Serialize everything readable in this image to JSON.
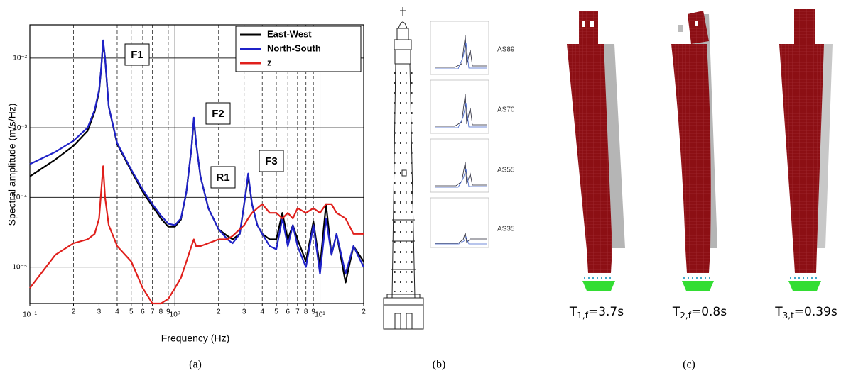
{
  "chart_data": {
    "type": "line",
    "xlabel": "Frequency (Hz)",
    "ylabel": "Spectral amplitude (m/s/Hz)",
    "xscale": "log",
    "yscale": "log",
    "grid": true,
    "legend": "upper right",
    "xlim": [
      0.1,
      20
    ],
    "ylim": [
      3e-06,
      0.03
    ],
    "xticks": [
      {
        "value": 0.1,
        "label": "10⁻¹"
      },
      {
        "value": 0.2,
        "label": "2"
      },
      {
        "value": 0.3,
        "label": "3"
      },
      {
        "value": 0.4,
        "label": "4"
      },
      {
        "value": 0.5,
        "label": "5"
      },
      {
        "value": 0.6,
        "label": "6"
      },
      {
        "value": 0.7,
        "label": "7"
      },
      {
        "value": 0.8,
        "label": "8"
      },
      {
        "value": 0.9,
        "label": "9"
      },
      {
        "value": 1,
        "label": "10⁰"
      },
      2,
      3,
      4,
      5,
      6,
      7,
      8,
      9,
      {
        "value": 10,
        "label": "10¹"
      },
      {
        "value": 20,
        "label": "2"
      }
    ],
    "yticks": [
      {
        "value": 1e-05,
        "label": "10⁻⁵"
      },
      {
        "value": 0.0001,
        "label": "10⁻⁴"
      },
      {
        "value": 0.001,
        "label": "10⁻³"
      },
      {
        "value": 0.01,
        "label": "10⁻²"
      }
    ],
    "x": [
      0.1,
      0.15,
      0.2,
      0.25,
      0.28,
      0.3,
      0.31,
      0.32,
      0.33,
      0.35,
      0.4,
      0.5,
      0.6,
      0.7,
      0.8,
      0.9,
      1.0,
      1.1,
      1.2,
      1.3,
      1.35,
      1.4,
      1.5,
      1.7,
      2.0,
      2.3,
      2.5,
      2.8,
      3.0,
      3.2,
      3.4,
      3.7,
      4.0,
      4.5,
      5.0,
      5.5,
      6.0,
      6.5,
      7,
      8,
      9,
      10,
      11,
      12,
      13,
      15,
      17,
      20
    ],
    "series": [
      {
        "name": "East-West",
        "color": "#000000",
        "values": [
          0.0002,
          0.00035,
          0.00055,
          0.0009,
          0.0017,
          0.0033,
          0.007,
          0.017,
          0.01,
          0.002,
          0.00058,
          0.00024,
          0.00012,
          7.5e-05,
          5e-05,
          3.8e-05,
          3.8e-05,
          4.8e-05,
          0.00012,
          0.0005,
          0.0013,
          0.0006,
          0.0002,
          7e-05,
          3.5e-05,
          2.8e-05,
          2.5e-05,
          3e-05,
          8e-05,
          0.0002,
          8e-05,
          4e-05,
          3e-05,
          2.5e-05,
          2.5e-05,
          6e-05,
          2.5e-05,
          4e-05,
          2.5e-05,
          1.2e-05,
          4.5e-05,
          1e-05,
          8e-05,
          1.5e-05,
          3e-05,
          6e-06,
          2e-05,
          1.2e-05
        ]
      },
      {
        "name": "North-South",
        "color": "#1f22c8",
        "values": [
          0.0003,
          0.00045,
          0.00065,
          0.001,
          0.0018,
          0.0035,
          0.007,
          0.018,
          0.01,
          0.002,
          0.0006,
          0.00025,
          0.00013,
          8e-05,
          5.5e-05,
          4.2e-05,
          4e-05,
          5e-05,
          0.00012,
          0.0005,
          0.0014,
          0.0006,
          0.0002,
          7e-05,
          3.5e-05,
          2.5e-05,
          2.2e-05,
          3e-05,
          8e-05,
          0.00022,
          8e-05,
          4e-05,
          3e-05,
          2e-05,
          1.8e-05,
          5e-05,
          2e-05,
          4e-05,
          2e-05,
          1e-05,
          4e-05,
          8e-06,
          5e-05,
          1.5e-05,
          3e-05,
          8e-06,
          2e-05,
          1e-05
        ]
      },
      {
        "name": "z",
        "color": "#e0201c",
        "values": [
          5e-06,
          1.5e-05,
          2.2e-05,
          2.5e-05,
          3e-05,
          5e-05,
          0.00012,
          0.00028,
          0.0001,
          4e-05,
          2e-05,
          1.2e-05,
          5e-06,
          3e-06,
          3e-06,
          3.5e-06,
          5e-06,
          7e-06,
          1.2e-05,
          2e-05,
          2.5e-05,
          2e-05,
          2e-05,
          2.2e-05,
          2.5e-05,
          2.5e-05,
          2.8e-05,
          3.5e-05,
          4e-05,
          5e-05,
          6e-05,
          7e-05,
          8e-05,
          6e-05,
          6e-05,
          5e-05,
          6e-05,
          5e-05,
          7e-05,
          6e-05,
          7e-05,
          6e-05,
          8e-05,
          8e-05,
          6e-05,
          5e-05,
          3e-05,
          3e-05
        ]
      }
    ],
    "annotations": [
      "F1",
      "F2",
      "R1",
      "F3"
    ],
    "panel_label": "(a)"
  },
  "panel_b": {
    "sensors": [
      "AS89",
      "AS70",
      "AS55",
      "AS35"
    ],
    "panel_label": "(b)"
  },
  "panel_c": {
    "modes": [
      {
        "base": "T",
        "sub": "1,f",
        "rest": "=3.7s"
      },
      {
        "base": "T",
        "sub": "2,f",
        "rest": "=0.8s"
      },
      {
        "base": "T",
        "sub": "3,t",
        "rest": "=0.39s"
      }
    ],
    "panel_label": "(c)"
  }
}
